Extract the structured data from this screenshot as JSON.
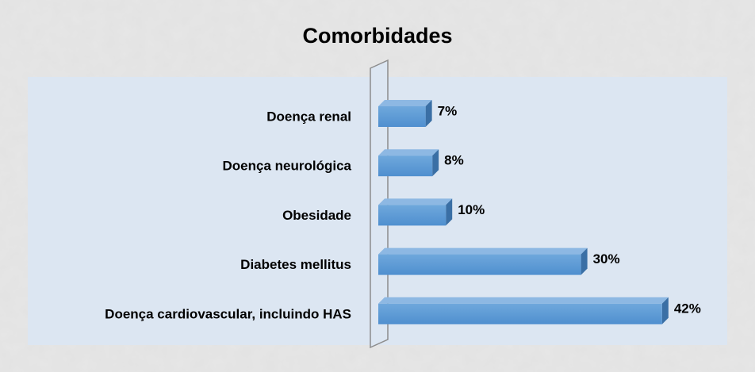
{
  "chart_data": {
    "type": "bar",
    "orientation": "horizontal",
    "title": "Comorbidades",
    "categories": [
      "Doença renal",
      "Doença neurológica",
      "Obesidade",
      "Diabetes mellitus",
      "Doença cardiovascular, incluindo HAS"
    ],
    "values": [
      7,
      8,
      10,
      30,
      42
    ],
    "value_labels": [
      "7%",
      "8%",
      "10%",
      "30%",
      "42%"
    ],
    "color": "#5b9bd5"
  }
}
